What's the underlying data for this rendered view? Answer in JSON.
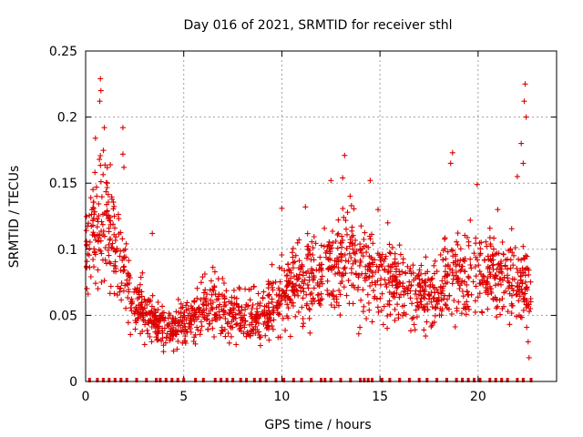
{
  "chart_data": {
    "type": "scatter",
    "title": "Day 016 of 2021, SRMTID for receiver sthl",
    "xlabel": "GPS time / hours",
    "ylabel": "SRMTID / TECUs",
    "xlim": [
      0,
      24
    ],
    "ylim": [
      0,
      0.25
    ],
    "grid": true,
    "legend": "none",
    "marker": "plus",
    "color": "#dd0000",
    "x_ticks": [
      0,
      5,
      10,
      15,
      20
    ],
    "x_tick_labels": [
      "0",
      "5",
      "10",
      "15",
      "20"
    ],
    "y_ticks": [
      0,
      0.05,
      0.1,
      0.15,
      0.2,
      0.25
    ],
    "y_tick_labels": [
      "0",
      "0.05",
      "0.1",
      "0.15",
      "0.2",
      "0.25"
    ],
    "profile_x": [
      0,
      0.5,
      0.8,
      1.2,
      1.8,
      2.2,
      2.8,
      3.5,
      4.0,
      4.5,
      5.0,
      5.5,
      6.0,
      6.5,
      7.0,
      8.0,
      9.0,
      10.0,
      11.0,
      12.0,
      13.0,
      13.5,
      14.5,
      15.5,
      16.5,
      17.5,
      18.5,
      19.5,
      20.0,
      21.0,
      21.8,
      22.3,
      22.7
    ],
    "profile_y": [
      0.09,
      0.115,
      0.125,
      0.12,
      0.09,
      0.07,
      0.055,
      0.045,
      0.04,
      0.04,
      0.045,
      0.05,
      0.055,
      0.06,
      0.055,
      0.05,
      0.05,
      0.065,
      0.075,
      0.08,
      0.09,
      0.1,
      0.08,
      0.075,
      0.07,
      0.065,
      0.075,
      0.08,
      0.085,
      0.08,
      0.08,
      0.075,
      0.06
    ],
    "spikes": [
      {
        "x": 0.75,
        "y": 0.229
      },
      {
        "x": 0.78,
        "y": 0.22
      },
      {
        "x": 0.72,
        "y": 0.212
      },
      {
        "x": 0.95,
        "y": 0.192
      },
      {
        "x": 1.9,
        "y": 0.192
      },
      {
        "x": 0.5,
        "y": 0.184
      },
      {
        "x": 1.9,
        "y": 0.172
      },
      {
        "x": 0.7,
        "y": 0.168
      },
      {
        "x": 1.95,
        "y": 0.162
      },
      {
        "x": 13.2,
        "y": 0.171
      },
      {
        "x": 13.1,
        "y": 0.154
      },
      {
        "x": 12.5,
        "y": 0.152
      },
      {
        "x": 14.5,
        "y": 0.152
      },
      {
        "x": 18.7,
        "y": 0.173
      },
      {
        "x": 18.6,
        "y": 0.165
      },
      {
        "x": 19.95,
        "y": 0.149
      },
      {
        "x": 22.4,
        "y": 0.225
      },
      {
        "x": 22.35,
        "y": 0.212
      },
      {
        "x": 22.45,
        "y": 0.2
      },
      {
        "x": 22.2,
        "y": 0.18
      },
      {
        "x": 22.3,
        "y": 0.165
      },
      {
        "x": 22.0,
        "y": 0.155
      },
      {
        "x": 22.55,
        "y": 0.03
      },
      {
        "x": 22.6,
        "y": 0.018
      },
      {
        "x": 3.4,
        "y": 0.112
      },
      {
        "x": 15.4,
        "y": 0.12
      },
      {
        "x": 14.9,
        "y": 0.13
      },
      {
        "x": 10.0,
        "y": 0.131
      },
      {
        "x": 11.2,
        "y": 0.132
      },
      {
        "x": 21.0,
        "y": 0.13
      }
    ],
    "zero_flags_x": [
      0.2,
      0.6,
      0.9,
      1.2,
      1.5,
      1.8,
      2.1,
      2.6,
      3.1,
      3.6,
      3.8,
      4.1,
      4.4,
      4.7,
      5.0,
      5.6,
      6.0,
      6.6,
      6.9,
      7.2,
      7.5,
      7.9,
      8.2,
      8.6,
      8.9,
      9.2,
      9.7,
      10.1,
      10.6,
      11.0,
      11.5,
      12.0,
      12.2,
      12.5,
      13.0,
      13.5,
      14.0,
      14.2,
      14.4,
      14.6,
      15.1,
      15.5,
      16.0,
      16.5,
      17.0,
      17.4,
      17.9,
      18.4,
      18.9,
      19.2,
      19.5,
      19.8,
      20.1,
      20.6,
      20.9,
      21.2,
      21.5,
      22.0,
      22.3,
      22.7
    ]
  }
}
